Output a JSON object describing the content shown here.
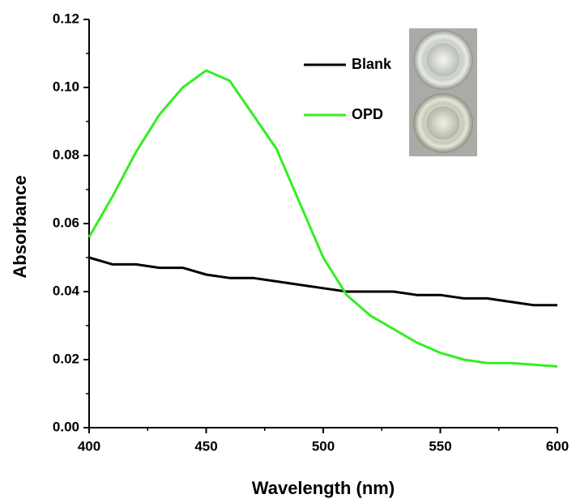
{
  "chart_data": {
    "type": "line",
    "x_label": "Wavelength (nm)",
    "y_label": "Absorbance",
    "x": [
      400,
      410,
      420,
      430,
      440,
      450,
      460,
      470,
      480,
      490,
      500,
      510,
      520,
      530,
      540,
      550,
      560,
      570,
      580,
      590,
      600
    ],
    "series": [
      {
        "name": "Blank",
        "color": "#000000",
        "values": [
          0.05,
          0.048,
          0.048,
          0.047,
          0.047,
          0.045,
          0.044,
          0.044,
          0.043,
          0.042,
          0.041,
          0.04,
          0.04,
          0.04,
          0.039,
          0.039,
          0.038,
          0.038,
          0.037,
          0.036,
          0.036
        ]
      },
      {
        "name": "OPD",
        "color": "#33ee22",
        "values": [
          0.056,
          0.068,
          0.081,
          0.092,
          0.1,
          0.105,
          0.102,
          0.092,
          0.082,
          0.066,
          0.05,
          0.039,
          0.033,
          0.029,
          0.025,
          0.022,
          0.02,
          0.019,
          0.019,
          0.0185,
          0.018
        ]
      }
    ],
    "xlim": [
      400,
      600
    ],
    "xticks": [
      400,
      450,
      500,
      550,
      600
    ],
    "ylim": [
      0,
      0.12
    ],
    "yticks": [
      {
        "value": 0,
        "label": "0.00"
      },
      {
        "value": 0.02,
        "label": "0.02"
      },
      {
        "value": 0.04,
        "label": "0.04"
      },
      {
        "value": 0.06,
        "label": "0.06"
      },
      {
        "value": 0.08,
        "label": "0.08"
      },
      {
        "value": 0.1,
        "label": "0.10"
      },
      {
        "value": 0.12,
        "label": "0.12"
      }
    ]
  }
}
